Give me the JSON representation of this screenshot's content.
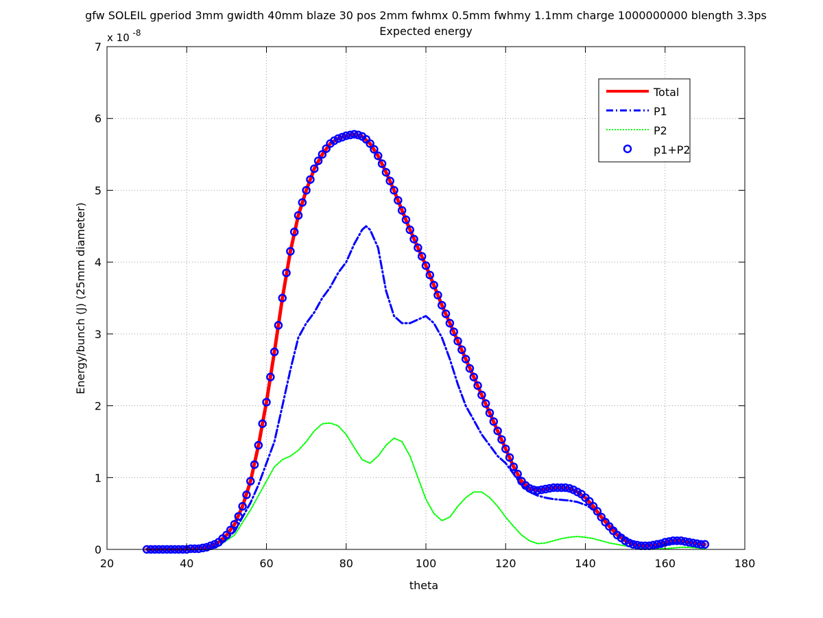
{
  "chart_data": {
    "type": "line",
    "title": "gfw SOLEIL gperiod 3mm gwidth 40mm blaze 30 pos 2mm fwhmx 0.5mm fwhmy 1.1mm charge 1000000000 blength 3.3ps",
    "subtitle": "Expected energy",
    "xlabel": "theta",
    "ylabel": "Energy/bunch (J)  (25mm diameter)",
    "y_exponent_label": "x 10",
    "y_exponent_power": "-8",
    "xlim": [
      20,
      180
    ],
    "ylim": [
      0,
      7
    ],
    "xticks": [
      20,
      40,
      60,
      80,
      100,
      120,
      140,
      160,
      180
    ],
    "yticks": [
      0,
      1,
      2,
      3,
      4,
      5,
      6,
      7
    ],
    "xtick_labels": [
      "20",
      "40",
      "60",
      "80",
      "100",
      "120",
      "140",
      "160",
      "180"
    ],
    "ytick_labels": [
      "0",
      "1",
      "2",
      "3",
      "4",
      "5",
      "6",
      "7"
    ],
    "grid": true,
    "legend_position": "top-right",
    "y_scale_note": "values in units of 1e-8 J",
    "series": [
      {
        "name": "Total",
        "style": "solid",
        "color": "#ff0000",
        "x": [
          30,
          40,
          44,
          46,
          48,
          50,
          52,
          54,
          56,
          58,
          60,
          62,
          64,
          66,
          68,
          70,
          72,
          74,
          76,
          78,
          80,
          82,
          84,
          86,
          88,
          90,
          92,
          94,
          96,
          98,
          100,
          102,
          104,
          106,
          108,
          110,
          112,
          114,
          116,
          118,
          120,
          122,
          124,
          126,
          128,
          130,
          132,
          134,
          136,
          138,
          140,
          142,
          144,
          146,
          148,
          150,
          152,
          154,
          156,
          158,
          160,
          162,
          164,
          166,
          168,
          170
        ],
        "y": [
          0.0,
          0.0,
          0.02,
          0.05,
          0.1,
          0.2,
          0.35,
          0.6,
          0.95,
          1.45,
          2.05,
          2.75,
          3.5,
          4.15,
          4.65,
          5.0,
          5.3,
          5.5,
          5.65,
          5.72,
          5.76,
          5.78,
          5.75,
          5.65,
          5.48,
          5.25,
          5.0,
          4.72,
          4.45,
          4.2,
          3.95,
          3.68,
          3.4,
          3.15,
          2.9,
          2.65,
          2.4,
          2.15,
          1.9,
          1.65,
          1.4,
          1.15,
          0.95,
          0.85,
          0.82,
          0.84,
          0.86,
          0.86,
          0.85,
          0.8,
          0.72,
          0.6,
          0.45,
          0.32,
          0.2,
          0.12,
          0.07,
          0.05,
          0.05,
          0.07,
          0.1,
          0.12,
          0.12,
          0.1,
          0.08,
          0.07
        ]
      },
      {
        "name": "P1",
        "style": "dashdot",
        "color": "#0000ff",
        "x": [
          30,
          40,
          44,
          48,
          52,
          56,
          58,
          60,
          62,
          64,
          66,
          68,
          70,
          72,
          74,
          76,
          78,
          80,
          82,
          84,
          85,
          86,
          88,
          90,
          92,
          94,
          96,
          98,
          100,
          102,
          104,
          106,
          108,
          110,
          112,
          114,
          116,
          118,
          120,
          122,
          124,
          126,
          128,
          130,
          132,
          134,
          136,
          138,
          140,
          142,
          144,
          146,
          148,
          150,
          152,
          154,
          156,
          158,
          160,
          162,
          164,
          166,
          168,
          170
        ],
        "y": [
          0.0,
          0.0,
          0.01,
          0.05,
          0.25,
          0.65,
          0.9,
          1.2,
          1.5,
          2.0,
          2.5,
          2.95,
          3.15,
          3.3,
          3.5,
          3.65,
          3.85,
          4.0,
          4.25,
          4.45,
          4.5,
          4.45,
          4.2,
          3.6,
          3.25,
          3.15,
          3.15,
          3.2,
          3.25,
          3.15,
          2.95,
          2.65,
          2.3,
          2.0,
          1.8,
          1.6,
          1.45,
          1.3,
          1.2,
          1.05,
          0.9,
          0.8,
          0.75,
          0.72,
          0.7,
          0.69,
          0.68,
          0.66,
          0.62,
          0.56,
          0.46,
          0.35,
          0.24,
          0.15,
          0.09,
          0.05,
          0.04,
          0.04,
          0.06,
          0.09,
          0.11,
          0.1,
          0.08,
          0.06
        ]
      },
      {
        "name": "P2",
        "style": "dotted",
        "color": "#00ff00",
        "x": [
          30,
          40,
          44,
          48,
          52,
          56,
          58,
          60,
          62,
          64,
          66,
          68,
          70,
          72,
          74,
          76,
          78,
          80,
          82,
          84,
          86,
          88,
          90,
          92,
          94,
          96,
          98,
          100,
          102,
          104,
          106,
          108,
          110,
          112,
          114,
          116,
          118,
          120,
          122,
          124,
          126,
          128,
          130,
          132,
          134,
          136,
          138,
          140,
          142,
          144,
          146,
          148,
          150,
          152,
          154,
          156,
          158,
          160,
          162,
          164,
          166,
          168,
          170
        ],
        "y": [
          0.0,
          0.0,
          0.01,
          0.05,
          0.2,
          0.55,
          0.75,
          0.95,
          1.15,
          1.25,
          1.3,
          1.38,
          1.5,
          1.65,
          1.75,
          1.76,
          1.72,
          1.6,
          1.42,
          1.25,
          1.2,
          1.3,
          1.45,
          1.55,
          1.5,
          1.3,
          1.0,
          0.7,
          0.5,
          0.4,
          0.45,
          0.6,
          0.72,
          0.8,
          0.8,
          0.72,
          0.6,
          0.45,
          0.32,
          0.2,
          0.12,
          0.08,
          0.09,
          0.12,
          0.15,
          0.17,
          0.18,
          0.17,
          0.15,
          0.12,
          0.09,
          0.07,
          0.05,
          0.03,
          0.02,
          0.01,
          0.01,
          0.01,
          0.02,
          0.03,
          0.03,
          0.02,
          0.01
        ]
      },
      {
        "name": "p1+P2",
        "style": "markers-circle",
        "color": "#0000ff",
        "x": [
          30,
          31,
          32,
          33,
          34,
          35,
          36,
          37,
          38,
          39,
          40,
          41,
          42,
          43,
          44,
          45,
          46,
          47,
          48,
          49,
          50,
          51,
          52,
          53,
          54,
          55,
          56,
          57,
          58,
          59,
          60,
          61,
          62,
          63,
          64,
          65,
          66,
          67,
          68,
          69,
          70,
          71,
          72,
          73,
          74,
          75,
          76,
          77,
          78,
          79,
          80,
          81,
          82,
          83,
          84,
          85,
          86,
          87,
          88,
          89,
          90,
          91,
          92,
          93,
          94,
          95,
          96,
          97,
          98,
          99,
          100,
          101,
          102,
          103,
          104,
          105,
          106,
          107,
          108,
          109,
          110,
          111,
          112,
          113,
          114,
          115,
          116,
          117,
          118,
          119,
          120,
          121,
          122,
          123,
          124,
          125,
          126,
          127,
          128,
          129,
          130,
          131,
          132,
          133,
          134,
          135,
          136,
          137,
          138,
          139,
          140,
          141,
          142,
          143,
          144,
          145,
          146,
          147,
          148,
          149,
          150,
          151,
          152,
          153,
          154,
          155,
          156,
          157,
          158,
          159,
          160,
          161,
          162,
          163,
          164,
          165,
          166,
          167,
          168,
          169,
          170
        ],
        "y": [
          0.0,
          0.0,
          0.0,
          0.0,
          0.0,
          0.0,
          0.0,
          0.0,
          0.0,
          0.0,
          0.0,
          0.01,
          0.01,
          0.01,
          0.02,
          0.03,
          0.05,
          0.07,
          0.1,
          0.15,
          0.2,
          0.27,
          0.35,
          0.46,
          0.6,
          0.76,
          0.95,
          1.18,
          1.45,
          1.75,
          2.05,
          2.4,
          2.75,
          3.12,
          3.5,
          3.85,
          4.15,
          4.42,
          4.65,
          4.83,
          5.0,
          5.15,
          5.3,
          5.41,
          5.5,
          5.58,
          5.65,
          5.69,
          5.72,
          5.74,
          5.76,
          5.77,
          5.78,
          5.77,
          5.75,
          5.71,
          5.65,
          5.57,
          5.48,
          5.37,
          5.25,
          5.13,
          5.0,
          4.86,
          4.72,
          4.59,
          4.45,
          4.32,
          4.2,
          4.08,
          3.95,
          3.82,
          3.68,
          3.54,
          3.4,
          3.28,
          3.15,
          3.03,
          2.9,
          2.78,
          2.65,
          2.52,
          2.4,
          2.28,
          2.15,
          2.03,
          1.9,
          1.78,
          1.65,
          1.53,
          1.4,
          1.28,
          1.15,
          1.05,
          0.95,
          0.89,
          0.85,
          0.83,
          0.82,
          0.83,
          0.84,
          0.85,
          0.86,
          0.86,
          0.86,
          0.86,
          0.85,
          0.83,
          0.8,
          0.77,
          0.72,
          0.67,
          0.6,
          0.53,
          0.45,
          0.38,
          0.32,
          0.26,
          0.2,
          0.16,
          0.12,
          0.09,
          0.07,
          0.06,
          0.05,
          0.05,
          0.05,
          0.06,
          0.07,
          0.08,
          0.1,
          0.11,
          0.12,
          0.12,
          0.12,
          0.11,
          0.1,
          0.09,
          0.08,
          0.07,
          0.07
        ]
      }
    ]
  }
}
